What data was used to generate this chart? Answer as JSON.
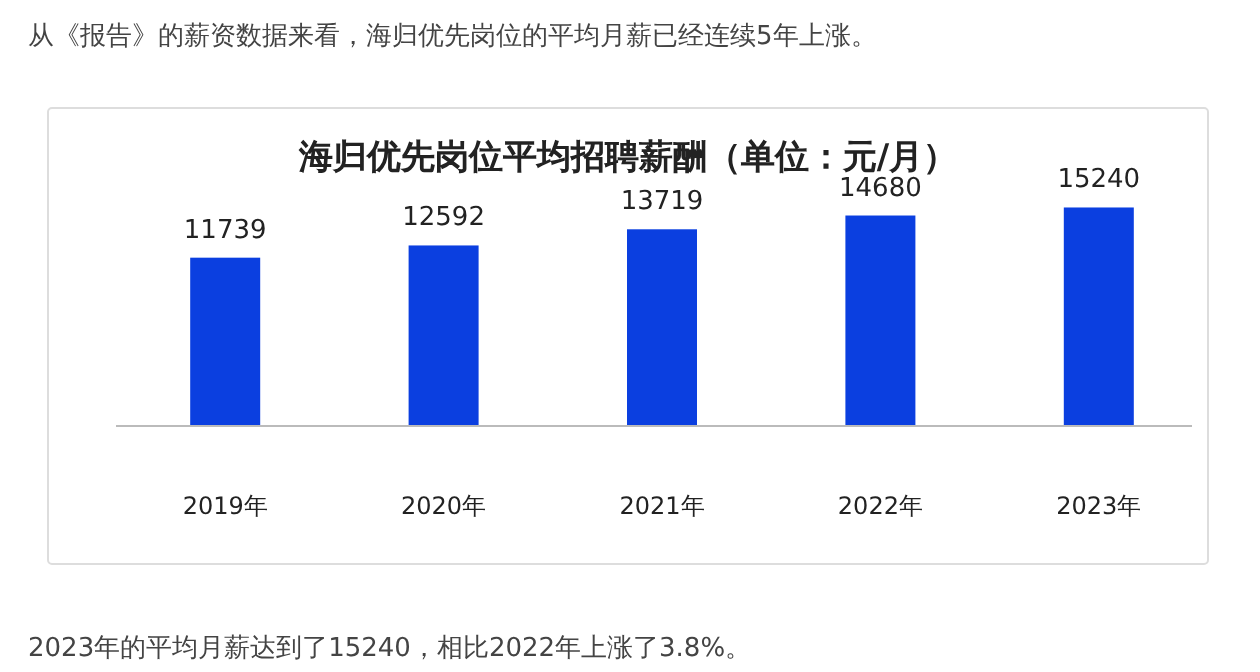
{
  "chart_data": {
    "type": "bar",
    "title": "海归优先岗位平均招聘薪酬（单位：元/月）",
    "categories": [
      "2019年",
      "2020年",
      "2021年",
      "2022年",
      "2023年"
    ],
    "values": [
      11739,
      12592,
      13719,
      14680,
      15240
    ],
    "color": "#0b3fe0",
    "data_labels": true,
    "annotations": [
      "从《报告》的薪资数据来看，海归优先岗位的平均月薪已经连续5年上涨。",
      "2023年的平均月薪达到了15240，相比2022年上涨了3.8%。"
    ]
  }
}
